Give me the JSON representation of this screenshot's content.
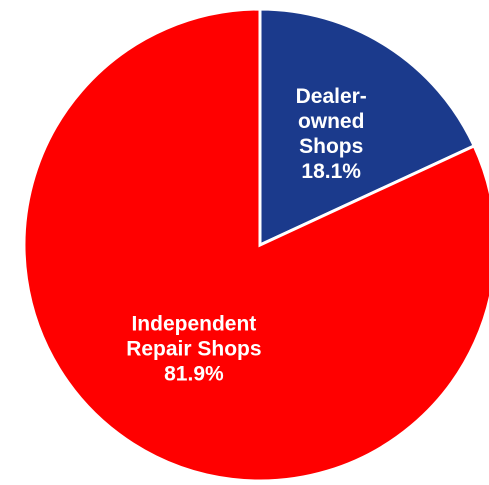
{
  "chart_data": {
    "type": "pie",
    "title": "",
    "slices": [
      {
        "label_lines": [
          "Dealer-",
          "owned",
          "Shops",
          "18.1%"
        ],
        "name": "Dealer-owned Shops",
        "value": 18.1,
        "color": "#1b3a8c"
      },
      {
        "label_lines": [
          "Independent",
          "Repair Shops",
          "81.9%"
        ],
        "name": "Independent Repair Shops",
        "value": 81.9,
        "color": "#ff0000"
      }
    ],
    "legend": "none"
  }
}
